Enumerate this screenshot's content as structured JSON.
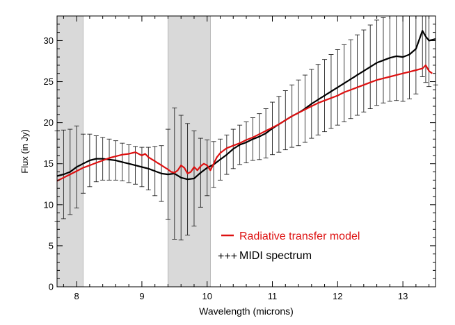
{
  "chart_data": {
    "type": "line",
    "title": "",
    "xlabel": "Wavelength (microns)",
    "ylabel": "Flux (in Jy)",
    "xlim": [
      7.7,
      13.5
    ],
    "ylim": [
      0,
      33
    ],
    "grid": false,
    "xticks": [
      8,
      9,
      10,
      11,
      12,
      13
    ],
    "yticks": [
      0,
      5,
      10,
      15,
      20,
      25,
      30
    ],
    "xtick_labels": [
      "8",
      "9",
      "10",
      "11",
      "12",
      "13"
    ],
    "ytick_labels": [
      "0",
      "5",
      "10",
      "15",
      "20",
      "25",
      "30"
    ],
    "shaded_regions": [
      {
        "x0": 7.7,
        "x1": 8.1,
        "color": "#d9d9d9"
      },
      {
        "x0": 9.4,
        "x1": 10.05,
        "color": "#d9d9d9"
      }
    ],
    "legend": {
      "position": "lower-right",
      "entries": [
        {
          "label": "Radiative transfer model",
          "color": "#dd1111",
          "marker": "line"
        },
        {
          "label": "MIDI spectrum",
          "color": "#000000",
          "marker": "+++"
        }
      ]
    },
    "series": [
      {
        "name": "MIDI spectrum",
        "color": "#000000",
        "x": [
          7.7,
          7.8,
          7.9,
          8.0,
          8.1,
          8.2,
          8.3,
          8.4,
          8.5,
          8.6,
          8.7,
          8.8,
          8.9,
          9.0,
          9.1,
          9.2,
          9.3,
          9.4,
          9.5,
          9.6,
          9.7,
          9.8,
          9.9,
          10.0,
          10.1,
          10.2,
          10.3,
          10.4,
          10.5,
          10.6,
          10.7,
          10.8,
          10.9,
          11.0,
          11.1,
          11.2,
          11.3,
          11.4,
          11.5,
          11.6,
          11.7,
          11.8,
          11.9,
          12.0,
          12.1,
          12.2,
          12.3,
          12.4,
          12.5,
          12.6,
          12.7,
          12.8,
          12.9,
          13.0,
          13.1,
          13.2,
          13.3,
          13.35,
          13.4,
          13.5
        ],
        "values": [
          13.5,
          13.7,
          14.0,
          14.6,
          15.0,
          15.4,
          15.6,
          15.6,
          15.5,
          15.4,
          15.2,
          15.0,
          14.8,
          14.6,
          14.4,
          14.1,
          13.8,
          13.7,
          13.8,
          13.3,
          13.1,
          13.2,
          13.9,
          14.5,
          14.9,
          15.5,
          16.1,
          16.8,
          17.3,
          17.6,
          18.0,
          18.3,
          18.7,
          19.3,
          19.8,
          20.3,
          20.8,
          21.2,
          21.7,
          22.3,
          22.8,
          23.3,
          23.8,
          24.3,
          24.8,
          25.3,
          25.8,
          26.3,
          26.8,
          27.3,
          27.6,
          27.9,
          28.1,
          28.0,
          28.3,
          29.0,
          31.2,
          30.5,
          30.0,
          30.2
        ],
        "errors": [
          5.5,
          5.4,
          5.2,
          5.0,
          3.6,
          3.2,
          2.8,
          2.6,
          2.5,
          2.4,
          2.3,
          2.3,
          2.3,
          2.4,
          2.6,
          3.0,
          3.4,
          5.5,
          8.0,
          7.6,
          6.8,
          5.8,
          4.2,
          3.4,
          2.8,
          2.5,
          2.4,
          2.4,
          2.4,
          2.5,
          2.6,
          2.8,
          3.0,
          3.2,
          3.4,
          3.6,
          3.8,
          4.0,
          4.1,
          4.2,
          4.3,
          4.4,
          4.5,
          4.6,
          4.7,
          4.8,
          4.9,
          5.0,
          5.1,
          5.2,
          5.2,
          5.3,
          5.4,
          5.4,
          5.4,
          5.5,
          5.6,
          5.6,
          5.6,
          5.6
        ]
      },
      {
        "name": "Radiative transfer model",
        "color": "#dd1111",
        "x": [
          7.7,
          7.8,
          7.9,
          8.0,
          8.1,
          8.2,
          8.3,
          8.4,
          8.5,
          8.6,
          8.7,
          8.8,
          8.9,
          9.0,
          9.05,
          9.1,
          9.2,
          9.3,
          9.4,
          9.45,
          9.5,
          9.55,
          9.6,
          9.65,
          9.7,
          9.75,
          9.8,
          9.85,
          9.9,
          9.95,
          10.0,
          10.05,
          10.1,
          10.15,
          10.2,
          10.3,
          10.4,
          10.5,
          10.6,
          10.7,
          10.8,
          10.9,
          11.0,
          11.1,
          11.2,
          11.3,
          11.4,
          11.5,
          11.6,
          11.7,
          11.8,
          11.9,
          12.0,
          12.1,
          12.2,
          12.3,
          12.4,
          12.5,
          12.6,
          12.7,
          12.8,
          12.9,
          13.0,
          13.1,
          13.2,
          13.3,
          13.35,
          13.4,
          13.45
        ],
        "values": [
          12.9,
          13.3,
          13.7,
          14.1,
          14.5,
          14.8,
          15.1,
          15.4,
          15.7,
          15.9,
          16.1,
          16.2,
          16.4,
          16.0,
          16.2,
          15.8,
          15.3,
          14.8,
          14.3,
          14.0,
          13.9,
          14.2,
          14.8,
          14.5,
          13.8,
          14.0,
          14.6,
          14.2,
          14.7,
          15.0,
          14.8,
          14.2,
          15.0,
          15.8,
          16.3,
          16.9,
          17.2,
          17.5,
          17.9,
          18.2,
          18.6,
          19.0,
          19.4,
          19.8,
          20.3,
          20.8,
          21.2,
          21.6,
          22.0,
          22.4,
          22.7,
          23.0,
          23.3,
          23.7,
          24.0,
          24.3,
          24.6,
          24.9,
          25.2,
          25.4,
          25.6,
          25.8,
          26.0,
          26.2,
          26.4,
          26.6,
          27.0,
          26.3,
          26.0
        ]
      }
    ]
  }
}
